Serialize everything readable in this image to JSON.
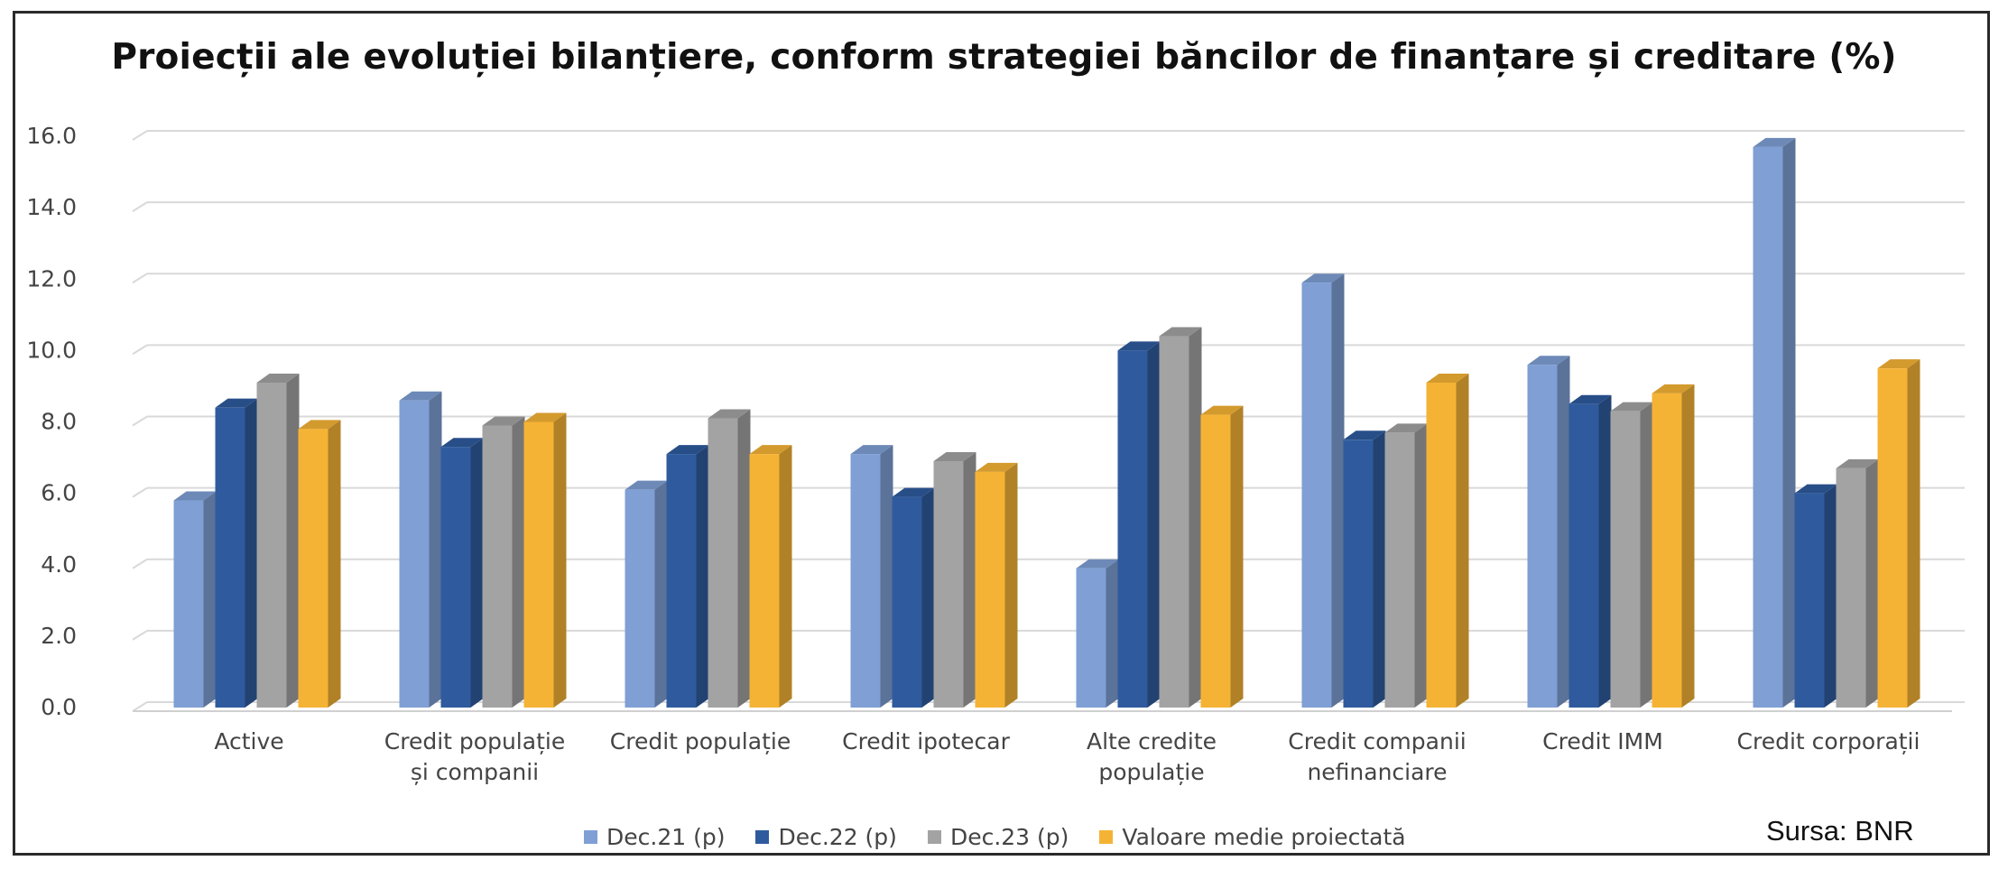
{
  "chart_data": {
    "type": "bar",
    "title": "Proiecții ale evoluției bilanțiere, conform strategiei băncilor de finanțare și creditare (%)",
    "categories": [
      [
        "Active"
      ],
      [
        "Credit populație",
        "și companii"
      ],
      [
        "Credit populație"
      ],
      [
        "Credit ipotecar"
      ],
      [
        "Alte credite",
        "populație"
      ],
      [
        "Credit companii",
        "nefinanciare"
      ],
      [
        "Credit IMM"
      ],
      [
        "Credit corporații"
      ]
    ],
    "series": [
      {
        "name": "Dec.21 (p)",
        "color": "#7f9fd5",
        "values": [
          5.8,
          8.6,
          6.1,
          7.1,
          3.9,
          11.9,
          9.6,
          15.7
        ]
      },
      {
        "name": "Dec.22 (p)",
        "color": "#2f5b9e",
        "values": [
          8.4,
          7.3,
          7.1,
          5.9,
          10.0,
          7.5,
          8.5,
          6.0
        ]
      },
      {
        "name": "Dec.23 (p)",
        "color": "#a3a3a3",
        "values": [
          9.1,
          7.9,
          8.1,
          6.9,
          10.4,
          7.7,
          8.3,
          6.7
        ]
      },
      {
        "name": "Valoare medie proiectată",
        "color": "#f5b335",
        "values": [
          7.8,
          8.0,
          7.1,
          6.6,
          8.2,
          9.1,
          8.8,
          9.5
        ]
      }
    ],
    "yticks": [
      "0.0",
      "2.0",
      "4.0",
      "6.0",
      "8.0",
      "10.0",
      "12.0",
      "14.0",
      "16.0"
    ],
    "ylim": [
      0,
      16
    ],
    "grid": true,
    "legend_position": "bottom"
  },
  "source": "Sursa: BNR"
}
